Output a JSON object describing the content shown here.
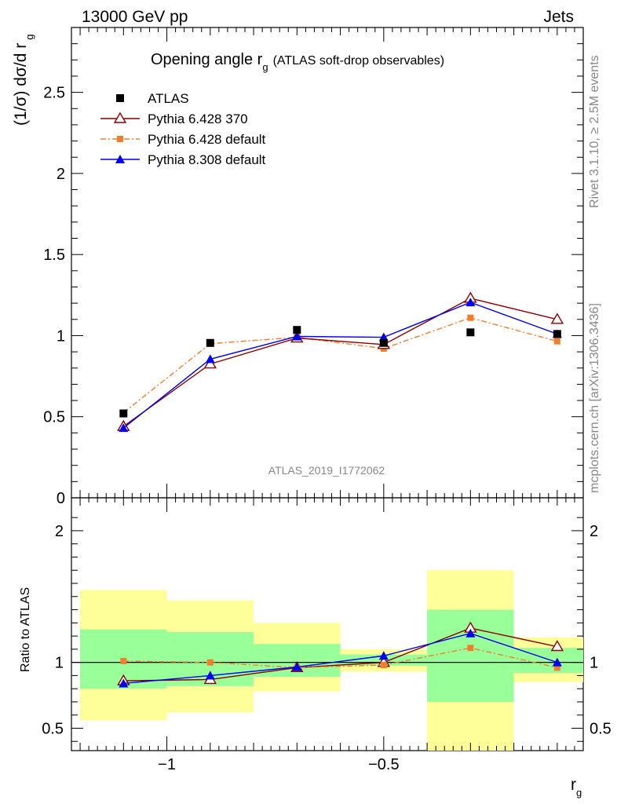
{
  "header": {
    "left": "13000 GeV pp",
    "right": "Jets"
  },
  "side_labels": {
    "rivet": "Rivet 3.1.10, ≥ 2.5M events",
    "mcplots": "mcplots.cern.ch [arXiv:1306.3436]"
  },
  "chart_data": {
    "type": "line",
    "title": "Opening angle r",
    "title_sub": "g",
    "title_suffix": "(ATLAS soft-drop observables)",
    "watermark": "ATLAS_2019_I1772062",
    "ylabel": "(1/σ) dσ/d r",
    "ylabel_sub": "g",
    "xlabel": "r",
    "xlabel_sub": "g",
    "ratio_ylabel": "Ratio to ATLAS",
    "xlim": [
      -1.22,
      -0.04
    ],
    "ylim": [
      0,
      2.9
    ],
    "ratio_ylim": [
      0.33,
      2.25
    ],
    "x_ticks": [
      "−1",
      "−0.5"
    ],
    "x_tick_values": [
      -1.0,
      -0.5
    ],
    "y_ticks": [
      "0",
      "0.5",
      "1",
      "1.5",
      "2",
      "2.5"
    ],
    "y_tick_values": [
      0,
      0.5,
      1,
      1.5,
      2,
      2.5
    ],
    "ratio_ticks": [
      "0.5",
      "1",
      "2"
    ],
    "ratio_tick_values": [
      0.5,
      1,
      2
    ],
    "x": [
      -1.1,
      -0.9,
      -0.7,
      -0.5,
      -0.3,
      -0.1
    ],
    "bin_edges": [
      -1.2,
      -1.0,
      -0.8,
      -0.6,
      -0.4,
      -0.2,
      -0.04
    ],
    "series": [
      {
        "name": "ATLAS",
        "values": [
          0.52,
          0.955,
          1.035,
          0.955,
          1.02,
          1.01
        ],
        "color": "#000000"
      },
      {
        "name": "Pythia 6.428 370",
        "values": [
          0.44,
          0.825,
          0.985,
          0.945,
          1.23,
          1.1
        ],
        "color": "#8b0000"
      },
      {
        "name": "Pythia 6.428 default",
        "values": [
          0.525,
          0.95,
          0.99,
          0.92,
          1.11,
          0.965
        ],
        "color": "#f07e2c"
      },
      {
        "name": "Pythia 8.308 default",
        "values": [
          0.43,
          0.855,
          0.995,
          0.99,
          1.205,
          1.01
        ],
        "color": "#0000ee"
      }
    ],
    "ratio_series": [
      {
        "name": "Pythia 6.428 370",
        "values": [
          0.86,
          0.87,
          0.96,
          1.0,
          1.26,
          1.12
        ]
      },
      {
        "name": "Pythia 6.428 default",
        "values": [
          1.01,
          1.0,
          0.96,
          0.98,
          1.11,
          0.96
        ]
      },
      {
        "name": "Pythia 8.308 default",
        "values": [
          0.84,
          0.9,
          0.965,
          1.05,
          1.22,
          1.0
        ]
      }
    ],
    "uncertainty_bands": {
      "inner": [
        [
          0.8,
          1.25
        ],
        [
          0.82,
          1.23
        ],
        [
          0.89,
          1.14
        ],
        [
          0.975,
          1.06
        ],
        [
          0.7,
          1.4
        ],
        [
          0.92,
          1.11
        ]
      ],
      "outer": [
        [
          0.56,
          1.55
        ],
        [
          0.62,
          1.47
        ],
        [
          0.78,
          1.3
        ],
        [
          0.93,
          1.1
        ],
        [
          0.3,
          1.7
        ],
        [
          0.85,
          1.19
        ]
      ],
      "inner_color": "#99ff99",
      "outer_color": "#ffff99"
    },
    "grid": false,
    "legend_position": "top-left"
  }
}
